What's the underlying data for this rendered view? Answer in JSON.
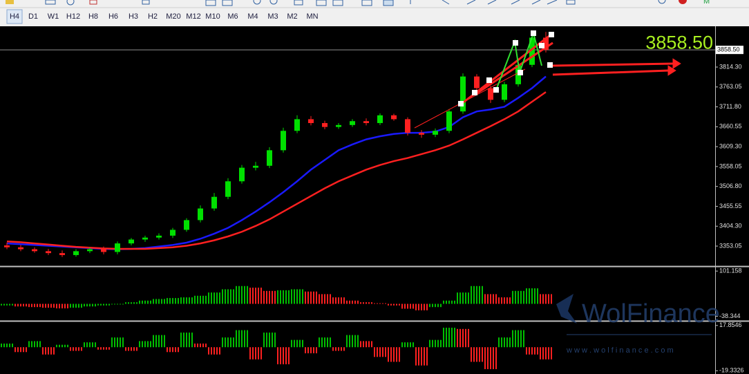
{
  "toolbar": {
    "timeframes": [
      "H4",
      "D1",
      "W1",
      "H12",
      "H8",
      "H6",
      "H3",
      "H2",
      "M20",
      "M12",
      "M10",
      "M6",
      "M4",
      "M3",
      "M2",
      "MN"
    ]
  },
  "watermark": {
    "brand": "WolFinance",
    "url": "w w w . w o l f i n a n c e . c o m"
  },
  "chart_data": [
    {
      "type": "candlestick",
      "open": [
        3355,
        3350,
        3345,
        3340,
        3335,
        3330,
        3340,
        3345,
        3338,
        3360,
        3370,
        3375,
        3380,
        3395,
        3420,
        3450,
        3480,
        3520,
        3555,
        3560,
        3600,
        3650,
        3680,
        3670,
        3660,
        3665,
        3675,
        3670,
        3690,
        3680,
        3645,
        3640,
        3650,
        3700,
        3790,
        3760,
        3730,
        3770,
        3820,
        3890
      ],
      "high": [
        3362,
        3356,
        3350,
        3346,
        3342,
        3345,
        3350,
        3352,
        3365,
        3374,
        3380,
        3386,
        3400,
        3425,
        3458,
        3490,
        3528,
        3562,
        3570,
        3608,
        3658,
        3690,
        3688,
        3676,
        3670,
        3680,
        3682,
        3695,
        3694,
        3685,
        3652,
        3656,
        3706,
        3798,
        3796,
        3766,
        3776,
        3826,
        3898,
        3905
      ],
      "low": [
        3345,
        3340,
        3336,
        3330,
        3325,
        3326,
        3335,
        3332,
        3332,
        3355,
        3364,
        3370,
        3374,
        3390,
        3414,
        3444,
        3474,
        3514,
        3548,
        3554,
        3594,
        3644,
        3664,
        3654,
        3655,
        3660,
        3664,
        3665,
        3676,
        3638,
        3632,
        3634,
        3644,
        3694,
        3754,
        3722,
        3724,
        3764,
        3814,
        3852
      ],
      "close": [
        3350,
        3345,
        3340,
        3335,
        3330,
        3340,
        3345,
        3338,
        3360,
        3370,
        3375,
        3380,
        3395,
        3420,
        3450,
        3480,
        3520,
        3555,
        3560,
        3600,
        3650,
        3680,
        3670,
        3660,
        3665,
        3675,
        3670,
        3690,
        3680,
        3645,
        3640,
        3650,
        3700,
        3790,
        3760,
        3730,
        3770,
        3820,
        3890,
        3858.5
      ],
      "up_color": "#00e000",
      "down_color": "#ff2020",
      "series": [
        {
          "color": "#1a1aff",
          "values": [
            3360,
            3358,
            3356,
            3354,
            3352,
            3350,
            3348,
            3346,
            3345,
            3346,
            3348,
            3352,
            3356,
            3362,
            3372,
            3385,
            3400,
            3420,
            3442,
            3466,
            3492,
            3520,
            3550,
            3575,
            3600,
            3615,
            3628,
            3636,
            3642,
            3645,
            3645,
            3648,
            3660,
            3685,
            3700,
            3705,
            3712,
            3735,
            3760,
            3790
          ]
        },
        {
          "color": "#ff2020",
          "values": [
            3365,
            3363,
            3360,
            3357,
            3354,
            3351,
            3349,
            3347,
            3346,
            3346,
            3346,
            3348,
            3350,
            3354,
            3360,
            3368,
            3378,
            3390,
            3405,
            3422,
            3442,
            3462,
            3482,
            3502,
            3520,
            3535,
            3550,
            3562,
            3572,
            3580,
            3590,
            3600,
            3612,
            3628,
            3645,
            3662,
            3680,
            3700,
            3725,
            3750
          ]
        }
      ],
      "last_price": {
        "value": 3858.5,
        "label": "3858.50"
      },
      "ylim": [
        3303.2,
        3915.8
      ],
      "yticks": [
        {
          "value": 3814.3,
          "label": "3814.30"
        },
        {
          "value": 3763.05,
          "label": "3763.05"
        },
        {
          "value": 3711.8,
          "label": "3711.80"
        },
        {
          "value": 3660.55,
          "label": "3660.55"
        },
        {
          "value": 3609.3,
          "label": "3609.30"
        },
        {
          "value": 3558.05,
          "label": "3558.05"
        },
        {
          "value": 3506.8,
          "label": "3506.80"
        },
        {
          "value": 3455.55,
          "label": "3455.55"
        },
        {
          "value": 3404.3,
          "label": "3404.30"
        },
        {
          "value": 3353.05,
          "label": "3353.05"
        }
      ]
    },
    {
      "type": "bar",
      "values": [
        -5,
        -8,
        -10,
        -12,
        -14,
        -12,
        -8,
        -5,
        -2,
        5,
        10,
        15,
        18,
        20,
        25,
        35,
        45,
        55,
        50,
        40,
        42,
        45,
        38,
        30,
        20,
        10,
        5,
        2,
        -5,
        -15,
        -20,
        -10,
        10,
        35,
        55,
        30,
        20,
        40,
        48,
        30
      ],
      "up_color": "#00c000",
      "down_color": "#ff2020",
      "ylim": [
        -48,
        110
      ],
      "yticks": [
        101.158,
        -38.344
      ]
    },
    {
      "type": "bar",
      "values": [
        3,
        -4,
        5,
        -6,
        2,
        -3,
        4,
        -2,
        8,
        -3,
        5,
        10,
        -4,
        12,
        3,
        -6,
        8,
        14,
        -10,
        12,
        -14,
        6,
        -5,
        8,
        -3,
        10,
        5,
        -8,
        -12,
        4,
        -15,
        6,
        16,
        15,
        -12,
        -18,
        8,
        14,
        -6,
        -10
      ],
      "up_color": "#00c000",
      "down_color": "#ff2020",
      "ylim": [
        -22,
        20
      ],
      "yticks": [
        17.8546,
        -19.3326
      ]
    }
  ]
}
